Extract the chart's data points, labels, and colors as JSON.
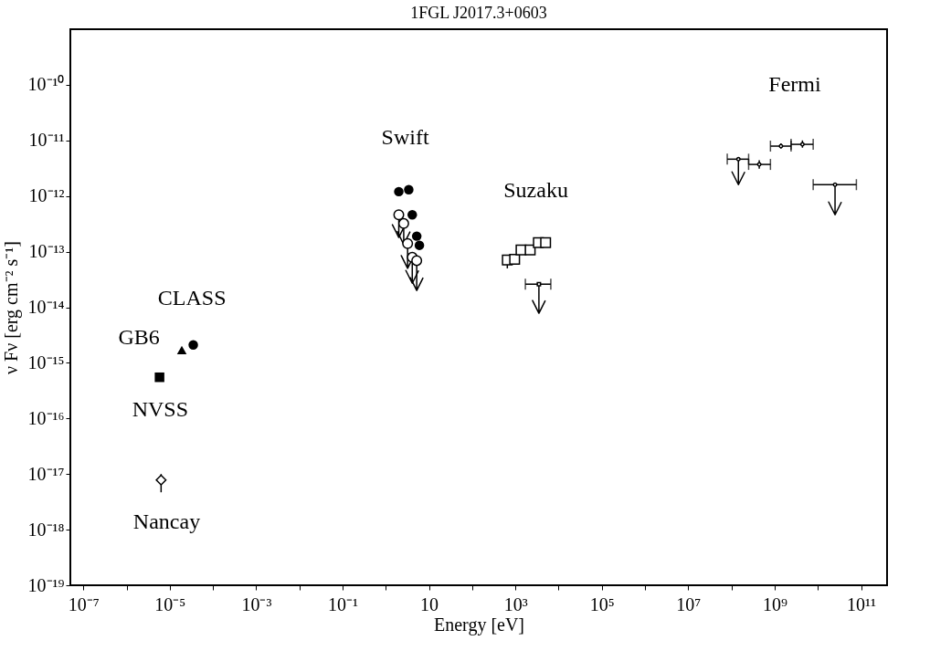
{
  "chart_data": {
    "type": "scatter",
    "title": "1FGL J2017.3+0603",
    "xlabel": "Energy [eV]",
    "ylabel": "ν Fν [erg cm⁻² s⁻¹]",
    "log": "xy",
    "grid": false,
    "xlim": [
      5e-08,
      400000000000.0
    ],
    "ylim": [
      1e-19,
      1e-09
    ],
    "xticks": [
      {
        "value": 1e-07,
        "label": "10⁻⁷"
      },
      {
        "value": 1e-06,
        "label": null
      },
      {
        "value": 1e-05,
        "label": "10⁻⁵"
      },
      {
        "value": 0.0001,
        "label": null
      },
      {
        "value": 0.001,
        "label": "10⁻³"
      },
      {
        "value": 0.01,
        "label": null
      },
      {
        "value": 0.1,
        "label": "10⁻¹"
      },
      {
        "value": 1,
        "label": null
      },
      10,
      {
        "value": 100,
        "label": null
      },
      {
        "value": 1000.0,
        "label": "10³"
      },
      {
        "value": 10000.0,
        "label": null
      },
      {
        "value": 100000.0,
        "label": "10⁵"
      },
      {
        "value": 1000000.0,
        "label": null
      },
      {
        "value": 10000000.0,
        "label": "10⁷"
      },
      {
        "value": 100000000.0,
        "label": null
      },
      {
        "value": 1000000000.0,
        "label": "10⁹"
      },
      {
        "value": 10000000000.0,
        "label": null
      },
      {
        "value": 100000000000.0,
        "label": "10¹¹"
      }
    ],
    "yticks": [
      {
        "value": 1e-19,
        "label": "10⁻¹⁹"
      },
      {
        "value": 1e-18,
        "label": "10⁻¹⁸"
      },
      {
        "value": 1e-17,
        "label": "10⁻¹⁷"
      },
      {
        "value": 1e-16,
        "label": "10⁻¹⁶"
      },
      {
        "value": 1e-15,
        "label": "10⁻¹⁵"
      },
      {
        "value": 1e-14,
        "label": "10⁻¹⁴"
      },
      {
        "value": 1e-13,
        "label": "10⁻¹³"
      },
      {
        "value": 1e-12,
        "label": "10⁻¹²"
      },
      {
        "value": 1e-11,
        "label": "10⁻¹¹"
      },
      {
        "value": 1e-10,
        "label": "10⁻¹⁰"
      }
    ],
    "series": [
      {
        "marker": "diamond",
        "color": "#000000",
        "x": [
          6.3e-06
        ],
        "values": [
          7.8e-18
        ],
        "errors": [
          [
            4.7e-18,
            1e-17
          ]
        ]
      },
      {
        "marker": "square",
        "color": "#000000",
        "x": [
          5.8e-06
        ],
        "values": [
          5.5e-16
        ]
      },
      {
        "marker": "triangle",
        "color": "#000000",
        "x": [
          1.9e-05
        ],
        "values": [
          1.7e-15
        ]
      },
      {
        "marker": "circle",
        "color": "#000000",
        "x": [
          3.5e-05
        ],
        "values": [
          2.1e-15
        ]
      },
      {
        "marker": "circle",
        "color": "#000000",
        "x": [
          2.0,
          3.4,
          4.1,
          5.2,
          6.0
        ],
        "values": [
          1.2e-12,
          1.3e-12,
          4.6e-13,
          1.9e-13,
          1.3e-13
        ]
      },
      {
        "marker": "circle",
        "color": "#000000",
        "x": [
          2.0,
          2.6,
          3.2,
          4.1,
          5.2
        ],
        "values": [
          4.6e-13,
          3.2e-13,
          1.4e-13,
          7.9e-14,
          6.9e-14
        ],
        "errors": [
          [
            1.8e-13,
            4.6e-13
          ],
          [
            1.35e-13,
            3.2e-13
          ],
          [
            5e-14,
            1.4e-13
          ],
          [
            2.7e-14,
            7.9e-14
          ],
          [
            2e-14,
            6.9e-14
          ]
        ]
      },
      {
        "marker": "square",
        "color": "#000000",
        "x": [
          650,
          960,
          1350,
          2200,
          3400,
          5000
        ],
        "values": [
          7.1e-14,
          7.3e-14,
          1.07e-13,
          1.07e-13,
          1.45e-13,
          1.45e-13
        ],
        "errors": [
          [
            5e-14,
            8.5e-14
          ],
          null,
          null,
          null,
          null,
          null
        ]
      },
      {
        "marker": "square",
        "color": "#000000",
        "x": [
          3500
        ],
        "values": [
          2.6e-14
        ],
        "errors": [
          [
            7.8e-15,
            2.6e-14
          ]
        ],
        "xerrors": [
          [
            1700,
            6600
          ]
        ]
      },
      {
        "marker": "circle",
        "color": "#000000",
        "x": [
          440000000.0,
          1400000000.0,
          4400000000.0
        ],
        "values": [
          3.7e-12,
          7.9e-12,
          8.5e-12
        ],
        "errors": [
          [
            3.1e-12,
            4.4e-12
          ],
          [
            7.1e-12,
            8.9e-12
          ],
          [
            7.4e-12,
            1e-11
          ]
        ],
        "xerrors": [
          [
            250000000.0,
            800000000.0
          ],
          [
            800000000.0,
            2400000000.0
          ],
          [
            2400000000.0,
            7800000000.0
          ]
        ]
      },
      {
        "marker": "circle",
        "color": "#000000",
        "x": [
          145000000.0,
          25000000000.0
        ],
        "values": [
          4.6e-12,
          1.6e-12
        ],
        "errors": [
          [
            1.6e-12,
            4.6e-12
          ],
          [
            4.6e-13,
            1.6e-12
          ]
        ],
        "xerrors": [
          [
            80000000.0,
            250000000.0
          ],
          [
            7800000000.0,
            78000000000.0
          ]
        ]
      }
    ],
    "annotations": [
      "Swift",
      "Suzaku",
      "Fermi",
      "CLASS",
      "GB6",
      "NVSS",
      "Nancay"
    ]
  }
}
